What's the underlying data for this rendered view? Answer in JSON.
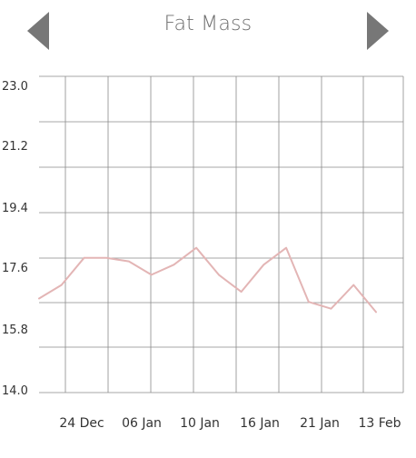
{
  "header": {
    "title": "Fat Mass",
    "prev_icon": "triangle-left-icon",
    "next_icon": "triangle-right-icon"
  },
  "chart_data": {
    "type": "line",
    "title": "Fat Mass",
    "xlabel": "",
    "ylabel": "",
    "ylim": [
      14.0,
      23.0
    ],
    "yticks": [
      "23.0",
      "21.2",
      "19.4",
      "17.6",
      "15.8",
      "14.0"
    ],
    "xticks": [
      "24 Dec",
      "06 Jan",
      "10 Jan",
      "16 Jan",
      "21 Jan",
      "13 Feb"
    ],
    "grid": true,
    "line_color": "#e3b5b5",
    "series": [
      {
        "values": [
          16.7,
          17.1,
          17.9,
          17.9,
          17.8,
          17.4,
          17.7,
          18.2,
          17.4,
          16.9,
          17.7,
          18.2,
          16.6,
          16.4,
          17.1,
          16.3
        ]
      }
    ]
  }
}
